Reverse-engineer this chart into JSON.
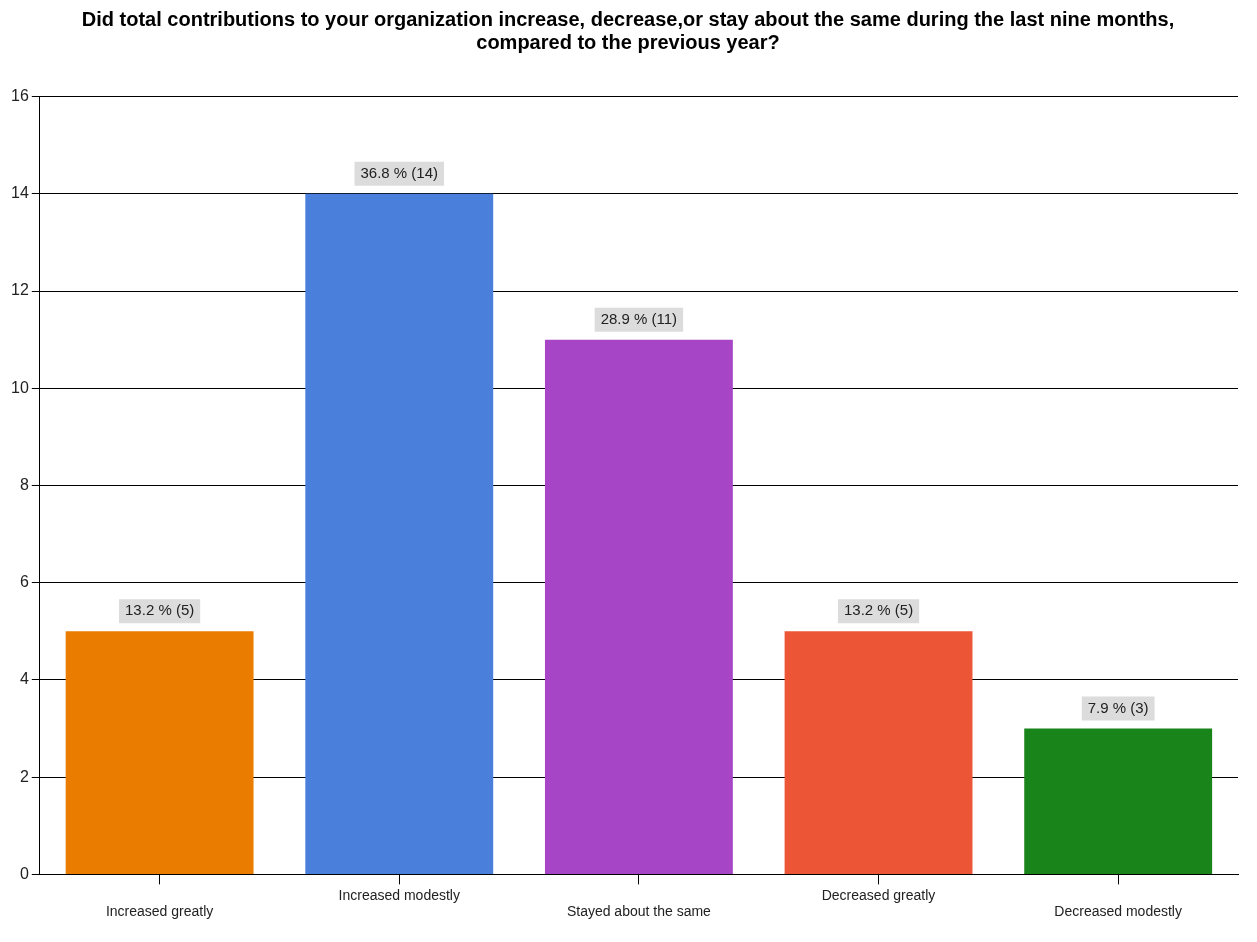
{
  "chart_data": {
    "type": "bar",
    "title": "Did total contributions to your organization increase, decrease,or stay about the same during the last nine months, compared to the previous year?",
    "categories": [
      "Increased greatly",
      "Increased modestly",
      "Stayed about the same",
      "Decreased greatly",
      "Decreased modestly"
    ],
    "values": [
      5,
      14,
      11,
      5,
      3
    ],
    "colors": [
      "#ea7d00",
      "#4a80dc",
      "#a646c6",
      "#ec5637",
      "#19841a"
    ],
    "value_labels": [
      "13.2 % (5)",
      "36.8 % (14)",
      "28.9 % (11)",
      "13.2 % (5)",
      "7.9 % (3)"
    ],
    "ylim": [
      0,
      16
    ],
    "yticks": [
      0,
      2,
      4,
      6,
      8,
      10,
      12,
      14,
      16
    ],
    "grid": "y",
    "legend": false
  }
}
